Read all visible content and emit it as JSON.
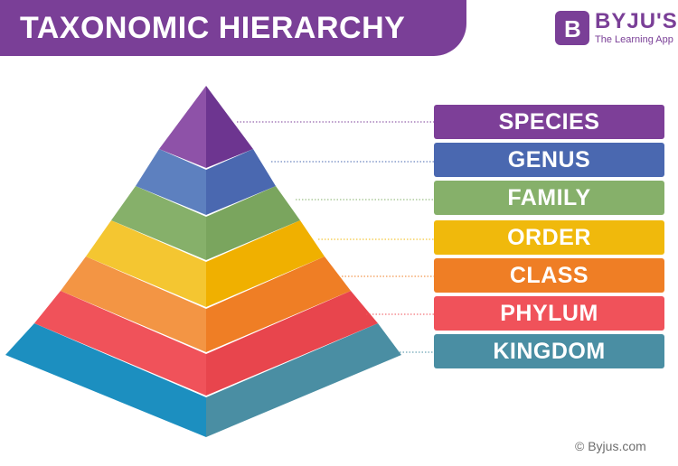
{
  "header": {
    "title": "TAXONOMIC HIERARCHY",
    "banner_color": "#7a3f97"
  },
  "logo": {
    "letter": "B",
    "name": "BYJU'S",
    "tagline": "The Learning App",
    "color": "#7a3f97"
  },
  "levels": [
    {
      "label": "SPECIES",
      "color": "#7d3f98",
      "dark": "#5f2d7a"
    },
    {
      "label": "GENUS",
      "color": "#4a68b0",
      "dark": "#34539a"
    },
    {
      "label": "FAMILY",
      "color": "#86b06a",
      "dark": "#5f8f47"
    },
    {
      "label": "ORDER",
      "color": "#f0b90c",
      "dark": "#e0a000"
    },
    {
      "label": "CLASS",
      "color": "#ef7e25",
      "dark": "#e06a10"
    },
    {
      "label": "PHYLUM",
      "color": "#f0525a",
      "dark": "#d9383f"
    },
    {
      "label": "KINGDOM",
      "color": "#4a8ea3",
      "dark": "#1c8fc0"
    }
  ],
  "footer": {
    "copyright": "© Byjus.com"
  }
}
